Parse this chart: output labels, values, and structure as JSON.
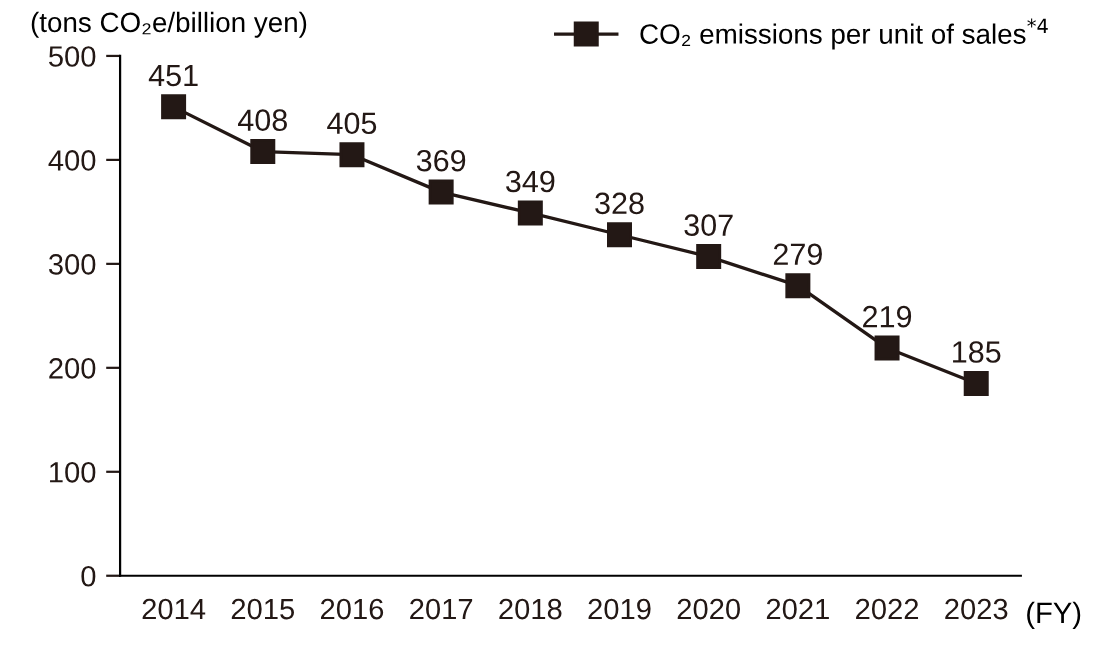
{
  "chart_data": {
    "type": "line",
    "ylabel": "(tons CO₂e/billion yen)",
    "xlabel": "(FY)",
    "categories": [
      "2014",
      "2015",
      "2016",
      "2017",
      "2018",
      "2019",
      "2020",
      "2021",
      "2022",
      "2023"
    ],
    "series": [
      {
        "name": "CO₂ emissions per unit of sales$^{*4}$",
        "color": "#231815",
        "values": [
          451,
          408,
          405,
          369,
          349,
          328,
          307,
          279,
          219,
          185
        ]
      }
    ],
    "ylim": [
      0,
      500
    ],
    "yticks": [
      0,
      100,
      200,
      300,
      400,
      500
    ],
    "marker": "square",
    "line_style": "solid",
    "data_labels": true,
    "legend": "top right",
    "grid": false
  }
}
